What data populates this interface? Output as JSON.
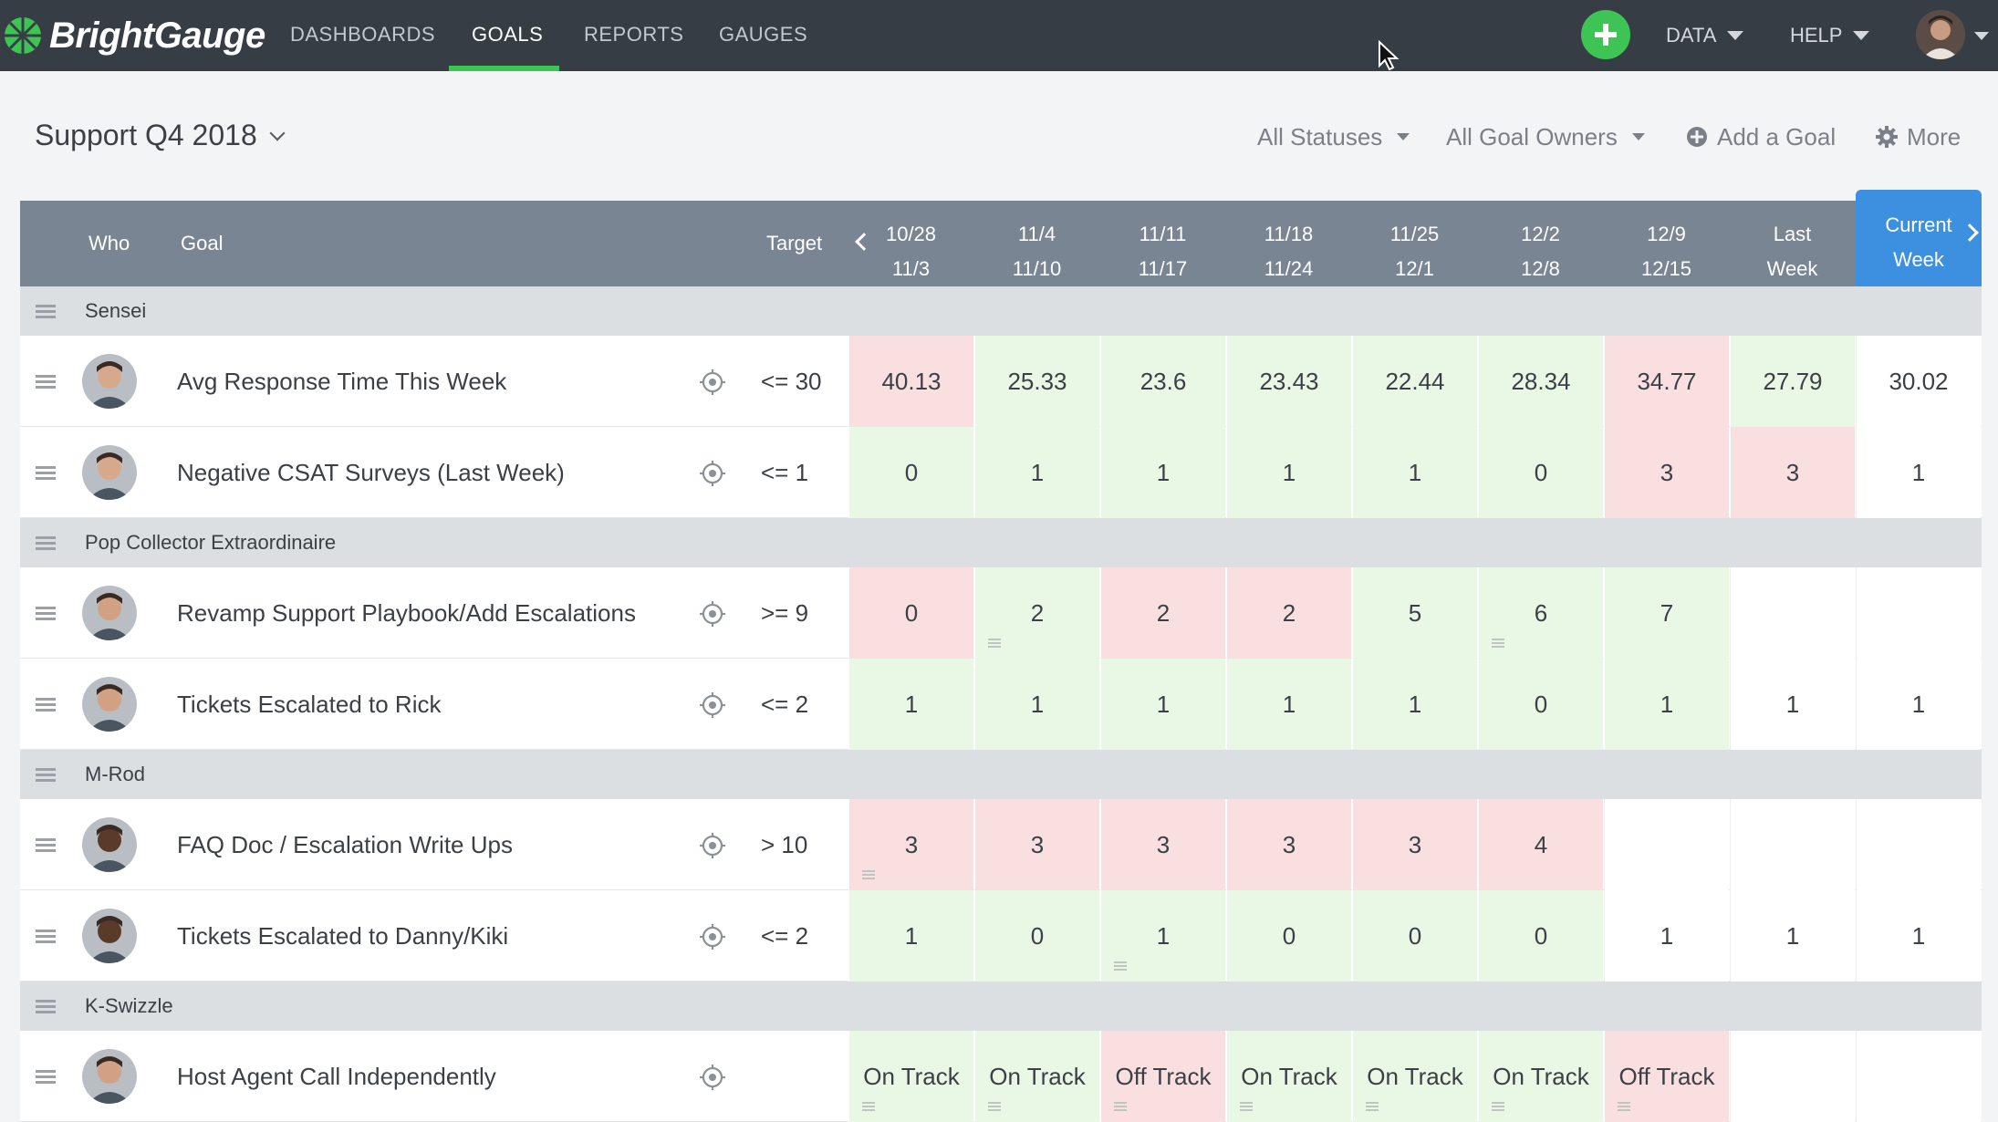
{
  "app": {
    "logo_text": "BrightGauge"
  },
  "nav": {
    "links": [
      "DASHBOARDS",
      "GOALS",
      "REPORTS",
      "GAUGES"
    ],
    "active": "GOALS",
    "data_label": "DATA",
    "help_label": "HELP"
  },
  "board": {
    "title": "Support Q4 2018"
  },
  "filters": {
    "status": "All Statuses",
    "owners": "All Goal Owners"
  },
  "toolbar": {
    "add_goal": "Add a Goal",
    "more": "More"
  },
  "table": {
    "headers": {
      "who": "Who",
      "goal": "Goal",
      "target": "Target"
    },
    "weeks": [
      [
        "10/28",
        "11/3"
      ],
      [
        "11/4",
        "11/10"
      ],
      [
        "11/11",
        "11/17"
      ],
      [
        "11/18",
        "11/24"
      ],
      [
        "11/25",
        "12/1"
      ],
      [
        "12/2",
        "12/8"
      ],
      [
        "12/9",
        "12/15"
      ],
      [
        "Last",
        "Week"
      ],
      [
        "Current",
        "Week"
      ]
    ],
    "groups": [
      {
        "name": "Sensei",
        "goals": [
          {
            "goal": "Avg Response Time This Week",
            "target": "<= 30",
            "values": [
              "40.13",
              "25.33",
              "23.6",
              "23.43",
              "22.44",
              "28.34",
              "34.77",
              "27.79",
              "30.02"
            ],
            "status": [
              "bad",
              "good",
              "good",
              "good",
              "good",
              "good",
              "bad",
              "good",
              "none"
            ],
            "notes": []
          },
          {
            "goal": "Negative CSAT Surveys (Last Week)",
            "target": "<= 1",
            "values": [
              "0",
              "1",
              "1",
              "1",
              "1",
              "0",
              "3",
              "3",
              "1"
            ],
            "status": [
              "good",
              "good",
              "good",
              "good",
              "good",
              "good",
              "bad",
              "bad",
              "none"
            ],
            "notes": []
          }
        ]
      },
      {
        "name": "Pop Collector Extraordinaire",
        "goals": [
          {
            "goal": "Revamp Support Playbook/Add Escalations",
            "target": ">= 9",
            "values": [
              "0",
              "2",
              "2",
              "2",
              "5",
              "6",
              "7",
              "",
              ""
            ],
            "status": [
              "bad",
              "good",
              "bad",
              "bad",
              "good",
              "good",
              "good",
              "none",
              "none"
            ],
            "notes": [
              1,
              5
            ]
          },
          {
            "goal": "Tickets Escalated to Rick",
            "target": "<= 2",
            "values": [
              "1",
              "1",
              "1",
              "1",
              "1",
              "0",
              "1",
              "1",
              "1"
            ],
            "status": [
              "good",
              "good",
              "good",
              "good",
              "good",
              "good",
              "good",
              "none",
              "none"
            ],
            "notes": []
          }
        ]
      },
      {
        "name": "M-Rod",
        "goals": [
          {
            "goal": "FAQ Doc / Escalation Write Ups",
            "target": "> 10",
            "values": [
              "3",
              "3",
              "3",
              "3",
              "3",
              "4",
              "",
              "",
              ""
            ],
            "status": [
              "bad",
              "bad",
              "bad",
              "bad",
              "bad",
              "bad",
              "none",
              "none",
              "none"
            ],
            "notes": [
              0
            ]
          },
          {
            "goal": "Tickets Escalated to Danny/Kiki",
            "target": "<= 2",
            "values": [
              "1",
              "0",
              "1",
              "0",
              "0",
              "0",
              "1",
              "1",
              "1"
            ],
            "status": [
              "good",
              "good",
              "good",
              "good",
              "good",
              "good",
              "none",
              "none",
              "none"
            ],
            "notes": [
              2
            ]
          }
        ]
      },
      {
        "name": "K-Swizzle",
        "goals": [
          {
            "goal": "Host Agent Call Independently",
            "target": "",
            "values": [
              "On Track",
              "On Track",
              "Off Track",
              "On Track",
              "On Track",
              "On Track",
              "Off Track",
              "",
              ""
            ],
            "status": [
              "good",
              "good",
              "bad",
              "good",
              "good",
              "good",
              "bad",
              "none",
              "none"
            ],
            "notes": [
              0,
              1,
              2,
              3,
              4,
              5,
              6
            ]
          }
        ]
      }
    ]
  },
  "colors": {
    "nav_bg": "#373d45",
    "accent_green": "#3ec455",
    "header_bg": "#7a8594",
    "current_week": "#3d8fe0",
    "good_cell": "#e9f8e4",
    "bad_cell": "#f9dfe0"
  }
}
